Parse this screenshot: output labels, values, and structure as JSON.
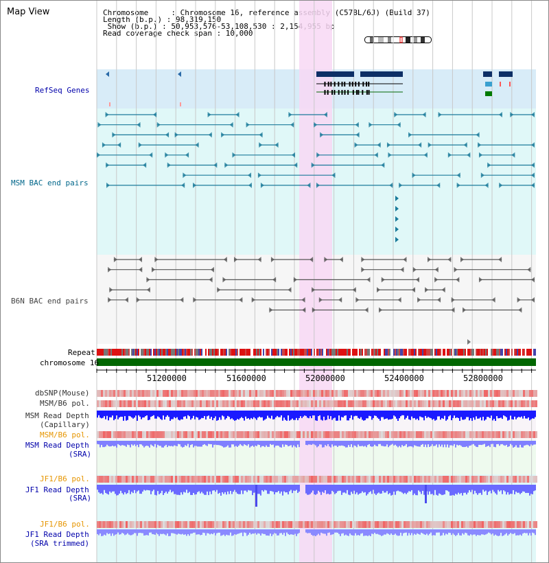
{
  "page": {
    "title": "Map View"
  },
  "header": {
    "lines": [
      "Chromosome     : Chromosome 16, reference assembly (C57BL/6J) (Build 37)",
      "Length (b.p.) : 98,319,150",
      " Show (b.p.) : 50,953,576-53,108,530 : 2,154,955 bp",
      "Read coverage check span : 10,000"
    ]
  },
  "tracks": {
    "refseq": {
      "label": "RefSeq Genes",
      "color": "#0000aa"
    },
    "msm_bac": {
      "label": "MSM BAC end pairs",
      "color": "#00668a"
    },
    "b6n_bac": {
      "label": "B6N BAC end pairs",
      "color": "#444444"
    },
    "repeat": {
      "label": "Repeat"
    },
    "chrom": {
      "label": "chromosome 16"
    },
    "dbsnp": {
      "label": "dbSNP(Mouse)"
    },
    "msm_b6_pol": {
      "label": "MSM/B6 pol."
    },
    "msm_read_cap": {
      "label1": "MSM Read Depth",
      "label2": "(Capillary)"
    },
    "msm_b6_pol2": {
      "label": "MSM/B6 pol.",
      "color": "#e69500"
    },
    "msm_read_sra": {
      "label1": "MSM Read Depth",
      "label2": "(SRA)",
      "color": "#0000aa"
    },
    "jf1_b6_pol": {
      "label": "JF1/B6 pol.",
      "color": "#e69500"
    },
    "jf1_read_sra": {
      "label1": "JF1 Read Depth",
      "label2": "(SRA)",
      "color": "#0000aa"
    },
    "jf1_b6_pol2": {
      "label": "JF1/B6 pol.",
      "color": "#e69500"
    },
    "jf1_read_trim": {
      "label1": "JF1 Read Depth",
      "label2": "(SRA trimmed)",
      "color": "#0000aa"
    }
  },
  "axis": {
    "ticks": [
      "51200000",
      "51600000",
      "52000000",
      "52400000",
      "52800000"
    ]
  },
  "colors": {
    "highlight": "#f8d8f4",
    "gene_bg": "#d8ecf8",
    "bac_bg": "#e0f8f8",
    "chrom_green": "#006600",
    "depth_blue": "#1a1aff",
    "depth_light": "#7f7fff"
  }
}
